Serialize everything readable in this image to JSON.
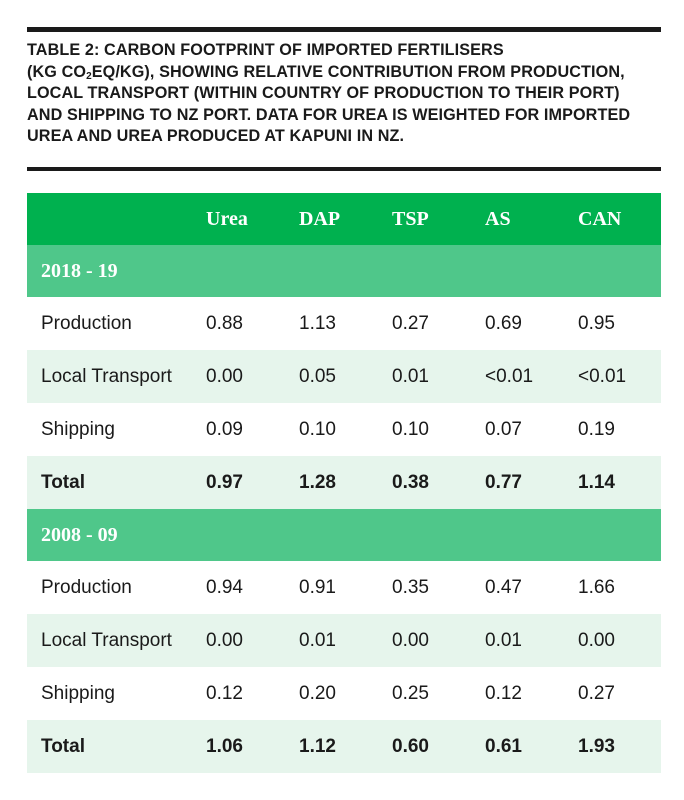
{
  "caption": {
    "line1": "TABLE 2: CARBON FOOTPRINT OF IMPORTED FERTILISERS",
    "line2_pre": "(KG CO",
    "line2_sub": "2",
    "line2_post": "EQ/KG), SHOWING RELATIVE CONTRIBUTION FROM PRODUCTION,",
    "line3": "LOCAL TRANSPORT (WITHIN COUNTRY OF PRODUCTION TO THEIR PORT)",
    "line4": "AND SHIPPING TO NZ PORT. DATA FOR UREA IS WEIGHTED FOR IMPORTED",
    "line5": "UREA AND UREA PRODUCED AT KAPUNI IN NZ."
  },
  "table": {
    "columns": [
      "Urea",
      "DAP",
      "TSP",
      "AS",
      "CAN"
    ],
    "sections": [
      {
        "title": "2018 - 19",
        "rows": [
          {
            "label": "Production",
            "values": [
              "0.88",
              "1.13",
              "0.27",
              "0.69",
              "0.95"
            ]
          },
          {
            "label": "Local Transport",
            "values": [
              "0.00",
              "0.05",
              "0.01",
              "<0.01",
              "<0.01"
            ]
          },
          {
            "label": "Shipping",
            "values": [
              "0.09",
              "0.10",
              "0.10",
              "0.07",
              "0.19"
            ]
          },
          {
            "label": "Total",
            "values": [
              "0.97",
              "1.28",
              "0.38",
              "0.77",
              "1.14"
            ]
          }
        ]
      },
      {
        "title": "2008 - 09",
        "rows": [
          {
            "label": "Production",
            "values": [
              "0.94",
              "0.91",
              "0.35",
              "0.47",
              "1.66"
            ]
          },
          {
            "label": "Local Transport",
            "values": [
              "0.00",
              "0.01",
              "0.00",
              "0.01",
              "0.00"
            ]
          },
          {
            "label": "Shipping",
            "values": [
              "0.12",
              "0.20",
              "0.25",
              "0.12",
              "0.27"
            ]
          },
          {
            "label": "Total",
            "values": [
              "1.06",
              "1.12",
              "0.60",
              "0.61",
              "1.93"
            ]
          }
        ]
      }
    ]
  },
  "colors": {
    "header_green": "#00b14f",
    "section_green": "#4fc78a",
    "stripe_green": "#e6f5ec"
  }
}
